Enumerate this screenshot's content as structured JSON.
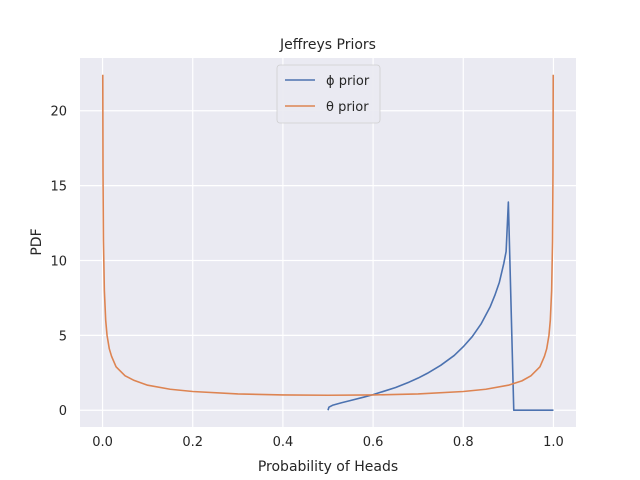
{
  "chart_data": {
    "type": "line",
    "title": "Jeffreys Priors",
    "xlabel": "Probability of Heads",
    "ylabel": "PDF",
    "xlim": [
      -0.05,
      1.05
    ],
    "ylim": [
      -1.12,
      23.52
    ],
    "xticks": [
      0.0,
      0.2,
      0.4,
      0.6,
      0.8,
      1.0
    ],
    "xtick_labels": [
      "0.0",
      "0.2",
      "0.4",
      "0.6",
      "0.8",
      "1.0"
    ],
    "yticks": [
      0,
      5,
      10,
      15,
      20
    ],
    "ytick_labels": [
      "0",
      "5",
      "10",
      "15",
      "20"
    ],
    "grid": true,
    "legend_position": "top-center",
    "series": [
      {
        "name": "ϕ prior",
        "color": "#4c72b0",
        "x": [
          0.5,
          0.502,
          0.51,
          0.53,
          0.55,
          0.58,
          0.6,
          0.62,
          0.65,
          0.68,
          0.7,
          0.72,
          0.75,
          0.78,
          0.8,
          0.82,
          0.84,
          0.86,
          0.87,
          0.88,
          0.89,
          0.895,
          0.9,
          0.912,
          0.914,
          1.0
        ],
        "values": [
          0.0,
          0.2,
          0.33,
          0.5,
          0.65,
          0.88,
          1.04,
          1.23,
          1.52,
          1.88,
          2.15,
          2.46,
          3.0,
          3.66,
          4.24,
          4.92,
          5.79,
          6.93,
          7.67,
          8.54,
          9.82,
          10.6,
          13.9,
          0.0,
          0.0,
          0.0
        ]
      },
      {
        "name": "θ prior",
        "color": "#dd8452",
        "x": [
          0.0005,
          0.001,
          0.002,
          0.004,
          0.007,
          0.01,
          0.015,
          0.02,
          0.03,
          0.05,
          0.07,
          0.1,
          0.15,
          0.2,
          0.3,
          0.4,
          0.5,
          0.6,
          0.7,
          0.8,
          0.85,
          0.9,
          0.93,
          0.95,
          0.97,
          0.98,
          0.985,
          0.99,
          0.993,
          0.996,
          0.998,
          0.999,
          0.9995
        ],
        "values": [
          22.4,
          15.9,
          11.3,
          8.0,
          6.0,
          5.0,
          4.1,
          3.6,
          2.9,
          2.3,
          1.99,
          1.67,
          1.4,
          1.25,
          1.09,
          1.02,
          1.0,
          1.02,
          1.09,
          1.25,
          1.4,
          1.67,
          1.96,
          2.3,
          2.9,
          3.6,
          4.1,
          5.0,
          6.0,
          8.0,
          11.3,
          15.9,
          22.4
        ]
      }
    ]
  }
}
